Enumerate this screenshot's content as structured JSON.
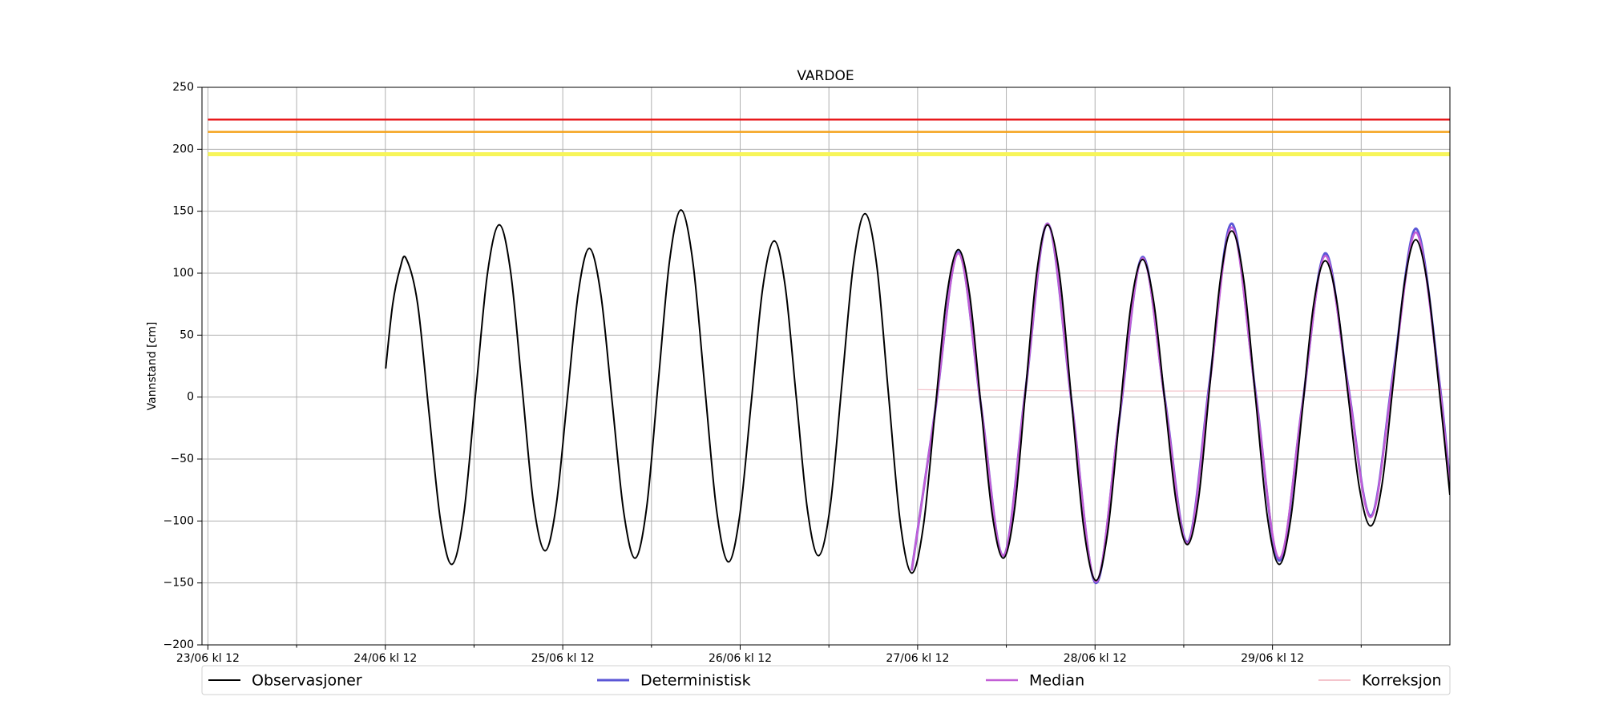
{
  "chart_data": {
    "type": "line",
    "title": "VARDOE",
    "ylabel": "Vannstand [cm]",
    "xlim": [
      -0.8,
      168
    ],
    "ylim": [
      -200,
      250
    ],
    "yticks": [
      {
        "value": -200,
        "label": "−200"
      },
      {
        "value": -150,
        "label": "−150"
      },
      {
        "value": -100,
        "label": "−100"
      },
      {
        "value": -50,
        "label": "−50"
      },
      0,
      50,
      100,
      150,
      200,
      250
    ],
    "xticks": [
      {
        "value": 0,
        "label": "23/06 kl 12"
      },
      {
        "value": 24,
        "label": "24/06 kl 12"
      },
      {
        "value": 48,
        "label": "25/06 kl 12"
      },
      {
        "value": 72,
        "label": "26/06 kl 12"
      },
      {
        "value": 96,
        "label": "27/06 kl 12"
      },
      {
        "value": 120,
        "label": "28/06 kl 12"
      },
      {
        "value": 144,
        "label": "29/06 kl 12"
      }
    ],
    "xminorticks": [
      12,
      36,
      60,
      84,
      108,
      132,
      156
    ],
    "grid": true,
    "legend": "bottom",
    "hlines": [
      {
        "value": 224,
        "color": "#e8191c"
      },
      {
        "value": 214,
        "color": "#f5a21b"
      },
      {
        "value": 196,
        "color": "#f7f55a"
      }
    ],
    "series": [
      {
        "name": "Observasjoner",
        "color": "#000000",
        "width": 2,
        "x": [
          24.05,
          25.0,
          26.0,
          26.8,
          28.35,
          29.9,
          31.45,
          33.0,
          34.6,
          36.2,
          37.8,
          39.4,
          40.95,
          42.5,
          44.05,
          45.6,
          47.1,
          48.6,
          50.1,
          51.6,
          53.15,
          54.7,
          56.25,
          57.8,
          59.35,
          60.9,
          62.45,
          64.0,
          65.6,
          67.2,
          68.8,
          70.4,
          71.95,
          73.5,
          75.05,
          76.6,
          78.1,
          79.6,
          81.1,
          82.6,
          84.18,
          85.75,
          87.33,
          88.9,
          90.48,
          92.05,
          93.63,
          95.2,
          96.78,
          98.35,
          99.93,
          101.5,
          103.03,
          104.55,
          106.08,
          107.6,
          109.1,
          110.6,
          112.1,
          113.6,
          115.23,
          116.85,
          118.48,
          120.1,
          121.68,
          123.25,
          124.83,
          126.4,
          127.93,
          129.45,
          130.98,
          132.5,
          134.0,
          135.5,
          137.0,
          138.5,
          140.1,
          141.7,
          143.3,
          144.9,
          146.45,
          148.0,
          149.55,
          151.1,
          152.65,
          154.2,
          155.75,
          157.3,
          158.83,
          160.35,
          161.88,
          163.4,
          165.0,
          166.5,
          168.0
        ],
        "values": [
          23,
          75,
          104,
          112,
          76,
          -12,
          -99,
          -135,
          -95,
          2,
          99,
          139,
          101,
          8,
          -86,
          -124,
          -88,
          -2,
          84,
          120,
          83,
          -5,
          -93,
          -130,
          -89,
          11,
          110,
          151,
          109,
          9,
          -91,
          -133,
          -95,
          -4,
          88,
          126,
          89,
          -1,
          -91,
          -128,
          -88,
          10,
          108,
          148,
          106,
          3,
          -100,
          -142,
          -104,
          -12,
          81,
          119,
          83,
          -6,
          -94,
          -130,
          -91,
          5,
          100,
          139,
          97,
          -5,
          -106,
          -148,
          -110,
          -19,
          73,
          111,
          77,
          -4,
          -85,
          -119,
          -82,
          8,
          97,
          134,
          95,
          0,
          -96,
          -135,
          -99,
          -13,
          74,
          110,
          79,
          3,
          -73,
          -104,
          -70,
          12,
          93,
          127,
          90,
          9,
          -79
        ]
      },
      {
        "name": "Deterministisk",
        "color": "#5b57d6",
        "width": 3,
        "x": [
          95.2,
          98.35,
          101.5,
          104.55,
          107.6,
          110.6,
          113.6,
          116.85,
          120.1,
          123.25,
          126.4,
          129.45,
          132.5,
          135.5,
          138.5,
          141.7,
          144.9,
          148.0,
          151.1,
          154.2,
          157.3,
          160.35,
          163.4,
          166.45,
          168.0
        ],
        "values": [
          -140,
          -12,
          117,
          -6,
          -128,
          6,
          140,
          -5,
          -150,
          -19,
          113,
          -2,
          -117,
          12,
          140,
          4,
          -132,
          -8,
          116,
          10,
          -96,
          20,
          136,
          18,
          -70
        ]
      },
      {
        "name": "Median",
        "color": "#c25ed6",
        "width": 2.5,
        "x": [
          95.2,
          98.35,
          101.5,
          104.55,
          107.6,
          110.6,
          113.6,
          116.85,
          120.1,
          123.25,
          126.4,
          129.45,
          132.5,
          135.5,
          138.5,
          141.7,
          144.9,
          148.0,
          151.1,
          154.2,
          157.3,
          160.35,
          163.4,
          166.45,
          168.0
        ],
        "values": [
          -140,
          -12,
          116,
          -6,
          -128,
          6,
          140,
          -5,
          -149,
          -18,
          112,
          -3,
          -118,
          10,
          137,
          3,
          -130,
          -8,
          114,
          9,
          -97,
          18,
          133,
          16,
          -73
        ]
      },
      {
        "name": "Korreksjon",
        "color": "#f4c4cc",
        "width": 1.2,
        "x": [
          96,
          120,
          144,
          168
        ],
        "values": [
          6,
          5,
          5,
          6
        ]
      }
    ]
  }
}
